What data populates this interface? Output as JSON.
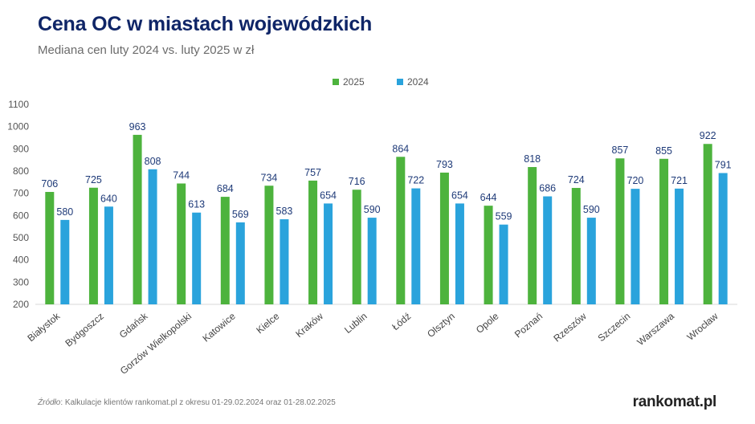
{
  "header": {
    "title": "Cena OC w miastach wojewódzkich",
    "subtitle": "Mediana cen luty 2024 vs. luty 2025 w zł"
  },
  "footer": {
    "source_label": "Źródło",
    "source_text": ": Kalkulacje klientów rankomat.pl z okresu 01-29.02.2024 oraz 01-28.02.2025",
    "logo": "rankomat.pl"
  },
  "colors": {
    "series_2025": "#4db33d",
    "series_2024": "#2aa3dc",
    "title": "#0f2567",
    "value_label": "#1e3a78"
  },
  "chart_data": {
    "type": "bar",
    "title": "Cena OC w miastach wojewódzkich",
    "subtitle": "Mediana cen luty 2024 vs. luty 2025 w zł",
    "xlabel": "",
    "ylabel": "",
    "ylim": [
      200,
      1100
    ],
    "yticks": [
      200,
      300,
      400,
      500,
      600,
      700,
      800,
      900,
      1000,
      1100
    ],
    "grid": false,
    "legend_position": "top-center",
    "categories": [
      "Białystok",
      "Bydgoszcz",
      "Gdańsk",
      "Gorzów Wielkopolski",
      "Katowice",
      "Kielce",
      "Kraków",
      "Lublin",
      "Łódź",
      "Olsztyn",
      "Opole",
      "Poznań",
      "Rzeszów",
      "Szczecin",
      "Warszawa",
      "Wrocław"
    ],
    "series": [
      {
        "name": "2025",
        "color": "#4db33d",
        "values": [
          706,
          725,
          963,
          744,
          684,
          734,
          757,
          716,
          864,
          793,
          644,
          818,
          724,
          857,
          855,
          922
        ]
      },
      {
        "name": "2024",
        "color": "#2aa3dc",
        "values": [
          580,
          640,
          808,
          613,
          569,
          583,
          654,
          590,
          722,
          654,
          559,
          686,
          590,
          720,
          721,
          791
        ]
      }
    ]
  }
}
